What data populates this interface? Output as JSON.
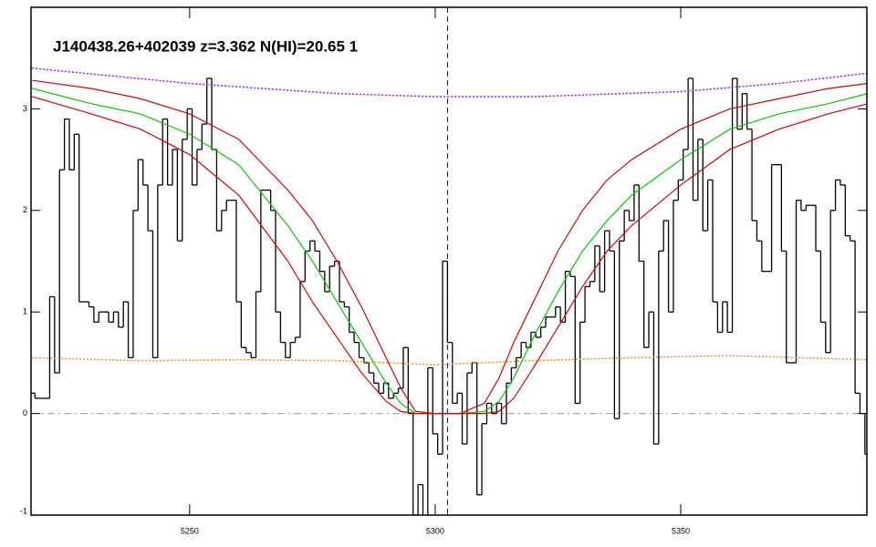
{
  "chart_data": {
    "type": "line",
    "annotation": "J140438.26+402039 z=3.362 N(HI)=20.65 1",
    "xlim": [
      5217.7,
      5387.9
    ],
    "ylim": [
      -1,
      4
    ],
    "xticks": [
      5250,
      5300,
      5350
    ],
    "yticks": [
      -1,
      0,
      1,
      2,
      3
    ],
    "hline": {
      "value": 0,
      "color": "#999999"
    },
    "vline": {
      "value": 5302.5,
      "color": "#0000cc"
    },
    "series": [
      {
        "style": "step",
        "color": "#000000",
        "x": [
          5218,
          5219,
          5220,
          5221,
          5222,
          5223,
          5224,
          5225,
          5226,
          5227,
          5228,
          5229,
          5230,
          5231,
          5232,
          5233,
          5234,
          5235,
          5236,
          5237,
          5238,
          5239,
          5240,
          5241,
          5242,
          5243,
          5244,
          5245,
          5246,
          5247,
          5248,
          5249,
          5250,
          5251,
          5252,
          5253,
          5254,
          5255,
          5256,
          5257,
          5258,
          5259,
          5260,
          5261,
          5262,
          5263,
          5264,
          5265,
          5266,
          5267,
          5268,
          5269,
          5270,
          5271,
          5272,
          5273,
          5274,
          5275,
          5276,
          5277,
          5278,
          5279,
          5280,
          5281,
          5282,
          5283,
          5284,
          5285,
          5286,
          5287,
          5288,
          5289,
          5290,
          5291,
          5292,
          5293,
          5294,
          5295,
          5296,
          5297,
          5298,
          5299,
          5300,
          5301,
          5302,
          5303,
          5304,
          5305,
          5306,
          5307,
          5308,
          5309,
          5310,
          5311,
          5312,
          5313,
          5314,
          5315,
          5316,
          5317,
          5318,
          5319,
          5320,
          5321,
          5322,
          5323,
          5324,
          5325,
          5326,
          5327,
          5328,
          5329,
          5330,
          5331,
          5332,
          5333,
          5334,
          5335,
          5336,
          5337,
          5338,
          5339,
          5340,
          5341,
          5342,
          5343,
          5344,
          5345,
          5346,
          5347,
          5348,
          5349,
          5350,
          5351,
          5352,
          5353,
          5354,
          5355,
          5356,
          5357,
          5358,
          5359,
          5360,
          5361,
          5362,
          5363,
          5364,
          5365,
          5366,
          5367,
          5368,
          5369,
          5370,
          5371,
          5372,
          5373,
          5374,
          5375,
          5376,
          5377,
          5378,
          5379,
          5380,
          5381,
          5382,
          5383,
          5384,
          5385,
          5386,
          5387,
          5388
        ],
        "values": [
          0.2,
          0.15,
          0.15,
          0.15,
          1.15,
          0.4,
          2.4,
          2.9,
          2.4,
          2.75,
          1.1,
          1.1,
          1.05,
          0.9,
          1.0,
          1.0,
          0.9,
          1.0,
          0.85,
          1.1,
          0.55,
          2.0,
          2.5,
          2.25,
          1.8,
          0.55,
          2.25,
          2.9,
          2.25,
          2.6,
          1.7,
          2.7,
          3.0,
          2.25,
          2.6,
          2.85,
          3.3,
          2.6,
          1.8,
          2.0,
          2.1,
          2.1,
          1.1,
          0.65,
          0.6,
          0.55,
          1.2,
          2.2,
          2.2,
          2.0,
          1.0,
          0.7,
          0.55,
          0.7,
          0.75,
          1.3,
          1.6,
          1.7,
          1.6,
          1.4,
          1.2,
          1.45,
          1.5,
          1.1,
          1.05,
          0.8,
          0.7,
          0.55,
          0.5,
          0.4,
          0.3,
          0.2,
          0.3,
          0.15,
          0.2,
          0.25,
          0.65,
          0.0,
          -1.0,
          -0.7,
          -1.1,
          0.45,
          -0.2,
          -0.4,
          1.5,
          0.7,
          0.1,
          0.2,
          -0.3,
          0.4,
          0.5,
          -0.8,
          -0.1,
          0.1,
          0.0,
          0.1,
          -0.1,
          0.3,
          0.45,
          0.55,
          0.7,
          0.65,
          0.8,
          0.75,
          0.85,
          0.95,
          0.95,
          1.05,
          0.9,
          1.4,
          1.35,
          0.1,
          0.9,
          1.25,
          1.3,
          1.65,
          1.2,
          1.8,
          1.6,
          -0.05,
          1.7,
          2.0,
          1.9,
          2.25,
          1.5,
          0.65,
          1.0,
          -0.3,
          1.6,
          1.9,
          1.0,
          2.1,
          2.3,
          2.6,
          3.3,
          2.1,
          2.7,
          1.8,
          2.3,
          1.1,
          0.8,
          1.1,
          0.8,
          3.3,
          2.8,
          3.15,
          2.8,
          1.9,
          1.7,
          1.4,
          1.4,
          2.45,
          2.45,
          1.6,
          0.5,
          0.5,
          2.1,
          2.0,
          2.05,
          2.05,
          1.6,
          0.9,
          0.6,
          2.0,
          2.3,
          2.25,
          1.75,
          1.7,
          0.2,
          0.0,
          -0.4
        ]
      },
      {
        "style": "dotted",
        "color": "#ff9933",
        "x": [
          5218,
          5240,
          5260,
          5280,
          5300,
          5320,
          5340,
          5360,
          5388
        ],
        "values": [
          0.55,
          0.52,
          0.53,
          0.52,
          0.48,
          0.52,
          0.55,
          0.57,
          0.53
        ]
      },
      {
        "style": "dotted",
        "color": "#9933ff",
        "x": [
          5218,
          5250,
          5280,
          5300,
          5320,
          5350,
          5370,
          5388
        ],
        "values": [
          3.4,
          3.25,
          3.15,
          3.12,
          3.12,
          3.17,
          3.25,
          3.35
        ]
      },
      {
        "style": "solid",
        "color": "#00cc00",
        "x": [
          5218,
          5230,
          5240,
          5250,
          5260,
          5270,
          5275,
          5280,
          5285,
          5290,
          5293,
          5296,
          5300,
          5305,
          5310,
          5313,
          5316,
          5320,
          5325,
          5330,
          5335,
          5340,
          5350,
          5360,
          5370,
          5380,
          5388
        ],
        "values": [
          3.2,
          3.05,
          2.95,
          2.75,
          2.45,
          1.85,
          1.5,
          1.1,
          0.7,
          0.3,
          0.1,
          0.0,
          0,
          0,
          0.02,
          0.12,
          0.35,
          0.75,
          1.2,
          1.6,
          1.9,
          2.15,
          2.5,
          2.8,
          2.95,
          3.05,
          3.15
        ]
      },
      {
        "style": "solid",
        "color": "#dd0000",
        "x": [
          5218,
          5230,
          5240,
          5250,
          5260,
          5270,
          5275,
          5280,
          5285,
          5290,
          5293,
          5296,
          5300,
          5305,
          5310,
          5313,
          5316,
          5320,
          5325,
          5330,
          5335,
          5340,
          5350,
          5360,
          5370,
          5380,
          5388
        ],
        "values": [
          3.28,
          3.2,
          3.1,
          2.95,
          2.7,
          2.2,
          1.9,
          1.5,
          1.05,
          0.55,
          0.25,
          0.02,
          0,
          0,
          0.1,
          0.35,
          0.7,
          1.1,
          1.6,
          2.0,
          2.3,
          2.5,
          2.8,
          3.0,
          3.1,
          3.2,
          3.25
        ]
      },
      {
        "style": "solid",
        "color": "#dd0000",
        "x": [
          5218,
          5230,
          5240,
          5250,
          5260,
          5270,
          5275,
          5280,
          5285,
          5290,
          5293,
          5296,
          5300,
          5305,
          5310,
          5313,
          5316,
          5320,
          5325,
          5330,
          5335,
          5340,
          5350,
          5360,
          5370,
          5380,
          5388
        ],
        "values": [
          3.12,
          2.95,
          2.8,
          2.55,
          2.15,
          1.5,
          1.1,
          0.75,
          0.4,
          0.12,
          0.02,
          0,
          0,
          0,
          0,
          0.02,
          0.15,
          0.45,
          0.85,
          1.25,
          1.6,
          1.85,
          2.25,
          2.6,
          2.8,
          2.95,
          3.05
        ]
      }
    ]
  }
}
